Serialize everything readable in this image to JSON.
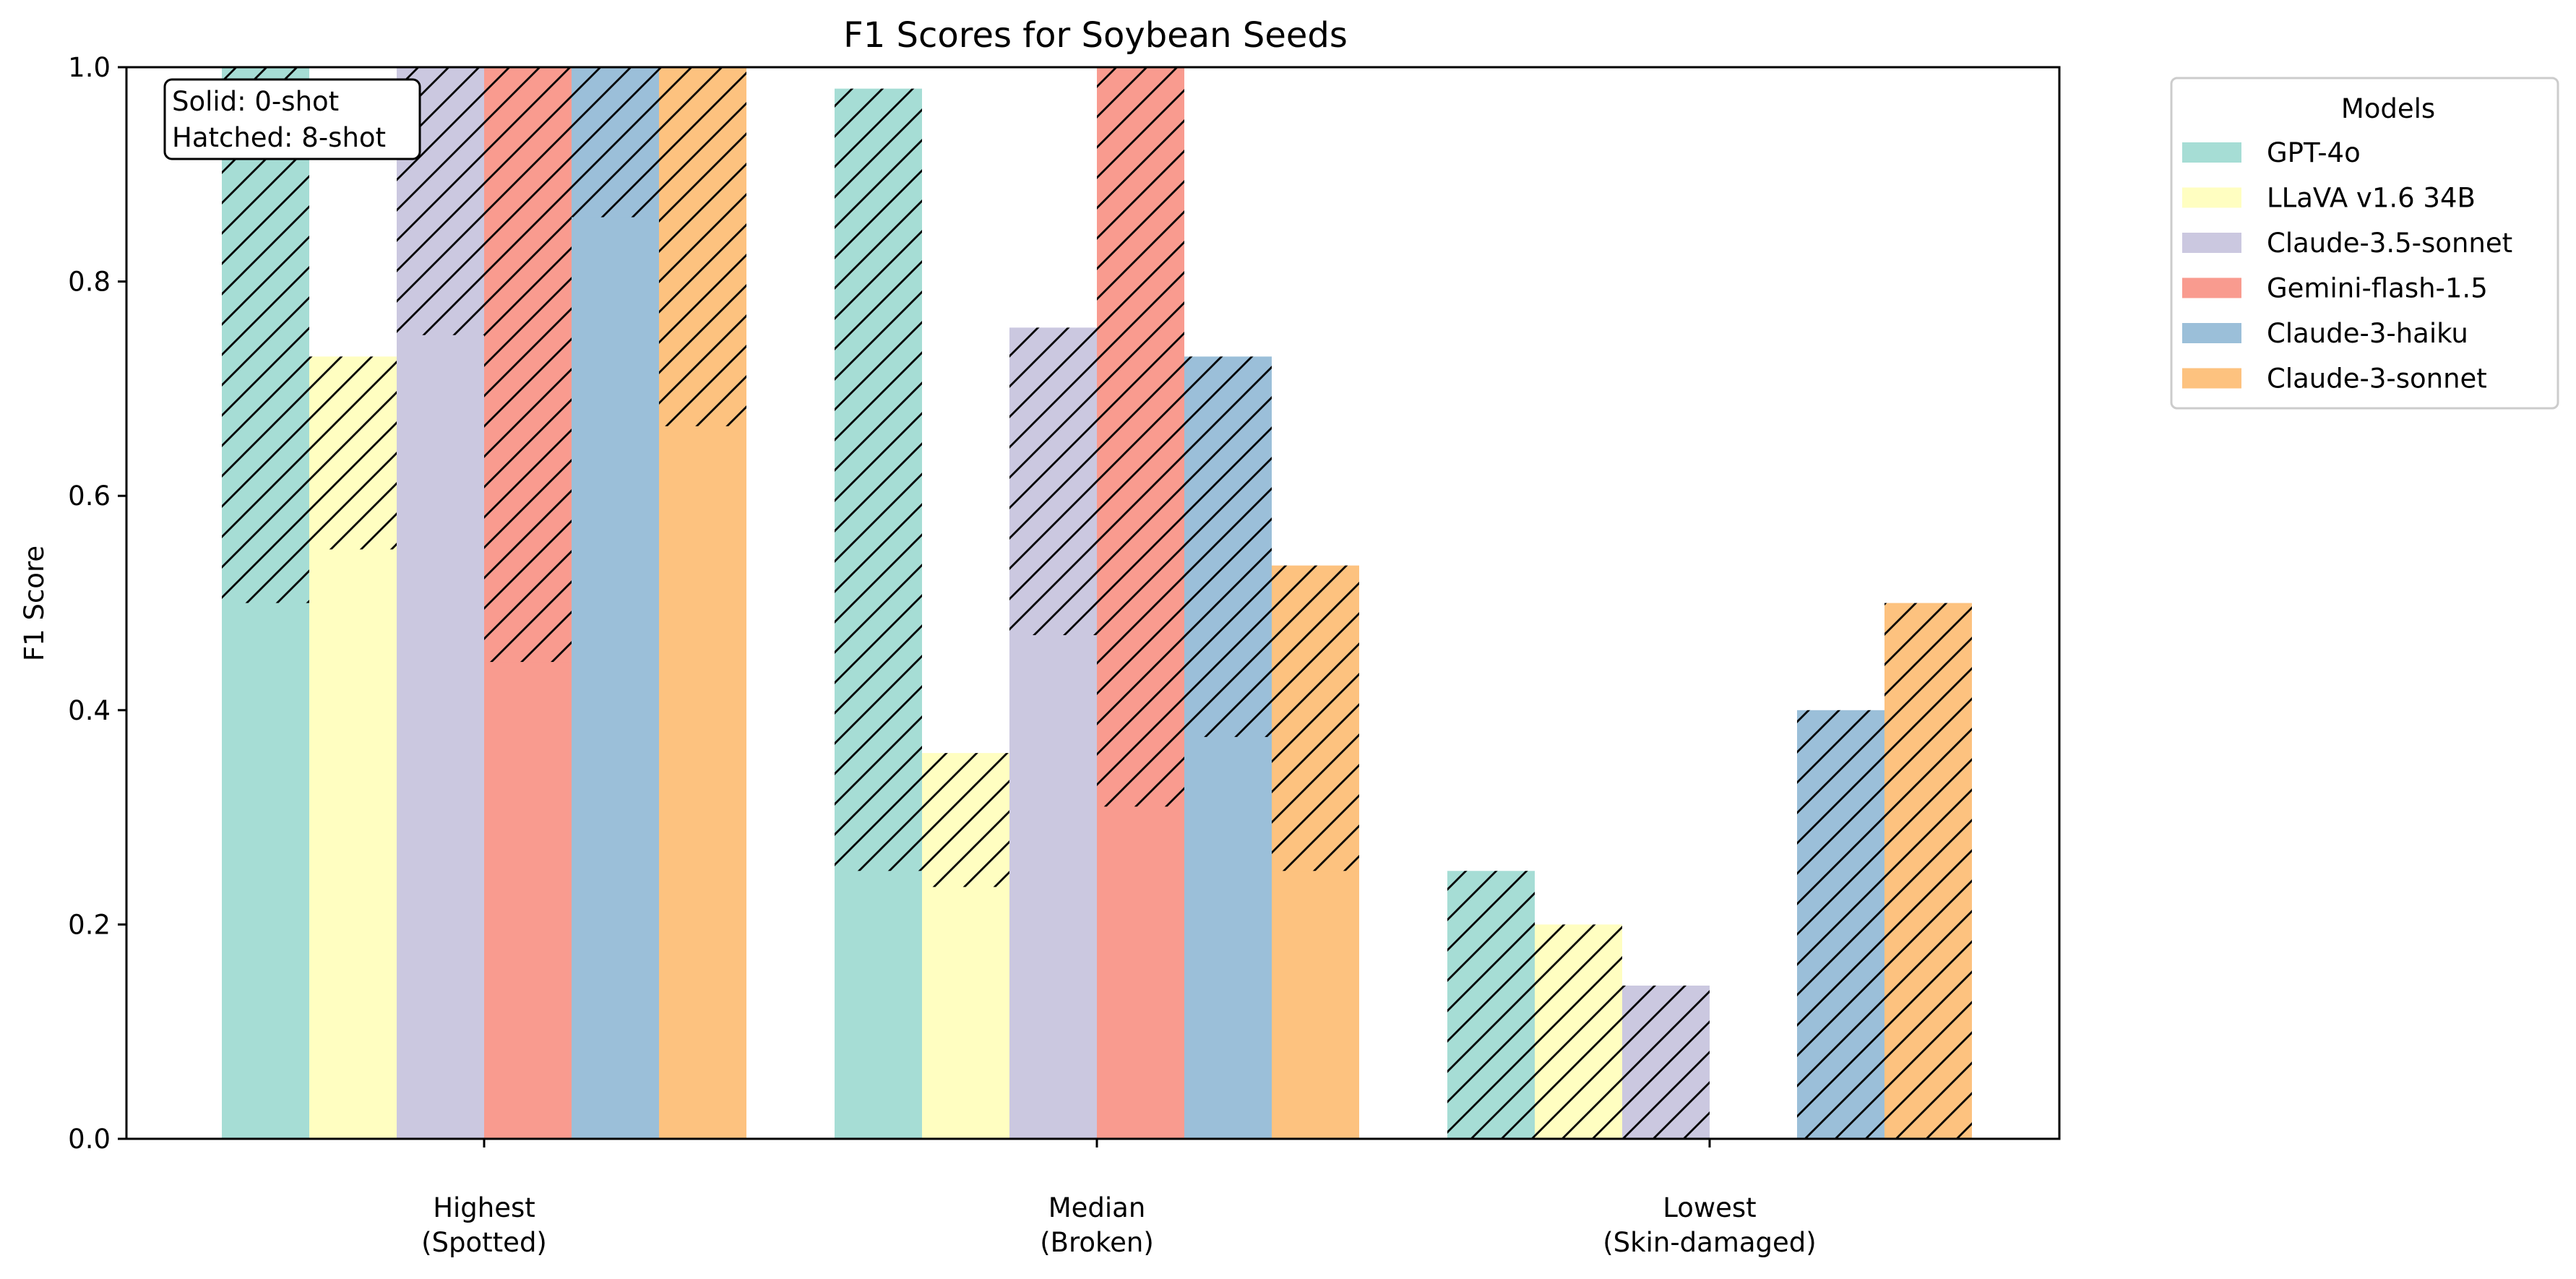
{
  "chart_data": {
    "type": "bar",
    "title": "F1 Scores for Soybean Seeds",
    "xlabel": "",
    "ylabel": "F1 Score",
    "ylim": [
      0,
      1.0
    ],
    "yticks": [
      "0.0",
      "0.2",
      "0.4",
      "0.6",
      "0.8",
      "1.0"
    ],
    "categories": [
      [
        "Highest",
        "(Spotted)"
      ],
      [
        "Median",
        "(Broken)"
      ],
      [
        "Lowest",
        "(Skin-damaged)"
      ]
    ],
    "legend": {
      "title": "Models",
      "position": "outside-upper-right"
    },
    "annotation": {
      "line1": "Solid: 0-shot",
      "line2": "Hatched: 8-shot",
      "position": "upper-left"
    },
    "series": [
      {
        "name": "GPT-4o",
        "color": "#a6ddd5",
        "zero_shot": [
          0.5,
          0.25,
          0.0
        ],
        "eight_shot": [
          1.0,
          0.98,
          0.25
        ]
      },
      {
        "name": "LLaVA v1.6 34B",
        "color": "#fffec1",
        "zero_shot": [
          0.55,
          0.235,
          0.0
        ],
        "eight_shot": [
          0.73,
          0.36,
          0.2
        ]
      },
      {
        "name": "Claude-3.5-sonnet",
        "color": "#cbc8e0",
        "zero_shot": [
          0.75,
          0.47,
          0.0
        ],
        "eight_shot": [
          1.0,
          0.757,
          0.143
        ]
      },
      {
        "name": "Gemini-flash-1.5",
        "color": "#f99b8f",
        "zero_shot": [
          0.445,
          0.31,
          0.0
        ],
        "eight_shot": [
          1.0,
          1.0,
          0.0
        ]
      },
      {
        "name": "Claude-3-haiku",
        "color": "#9bbfd9",
        "zero_shot": [
          0.86,
          0.375,
          0.0
        ],
        "eight_shot": [
          1.0,
          0.73,
          0.4
        ]
      },
      {
        "name": "Claude-3-sonnet",
        "color": "#fdc27f",
        "zero_shot": [
          0.665,
          0.25,
          0.0
        ],
        "eight_shot": [
          1.0,
          0.535,
          0.5
        ]
      }
    ]
  }
}
